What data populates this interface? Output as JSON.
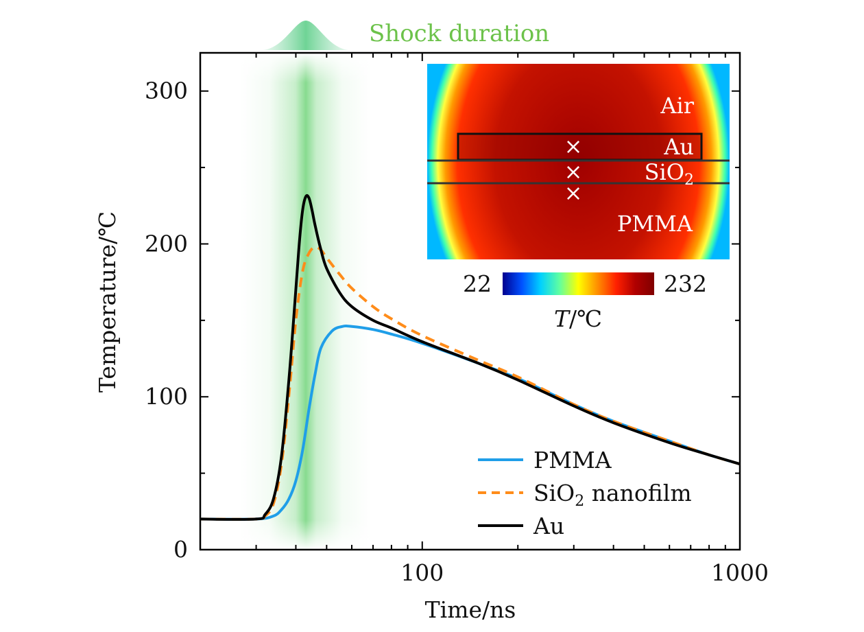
{
  "chart_data": {
    "type": "line",
    "xscale": "log",
    "xlim": [
      20,
      1000
    ],
    "ylim": [
      0,
      325
    ],
    "xlabel": "Time/ns",
    "ylabel": "Temperature/℃",
    "xticks": [
      100,
      1000
    ],
    "xtick_labels": [
      "100",
      "1000"
    ],
    "yticks": [
      0,
      100,
      200,
      300
    ],
    "ytick_labels": [
      "0",
      "100",
      "200",
      "300"
    ],
    "grid": false,
    "legend_position": "bottom-right",
    "series": [
      {
        "name": "PMMA",
        "color": "#1f9ee8",
        "style": "solid",
        "x": [
          20,
          30,
          34,
          36,
          38,
          40,
          42,
          44,
          46,
          48,
          52,
          56,
          60,
          70,
          80,
          100,
          150,
          200,
          300,
          400,
          600,
          800,
          1000
        ],
        "y": [
          20,
          20,
          22,
          26,
          33,
          45,
          65,
          92,
          115,
          132,
          143,
          146,
          146,
          144,
          141,
          135,
          122,
          112,
          95,
          84,
          71,
          62,
          56
        ]
      },
      {
        "name": "SiO₂ nanofilm",
        "name_main": "SiO",
        "name_sub": "2",
        "name_rest": " nanofilm",
        "color": "#ff8c1a",
        "style": "dashed",
        "x": [
          20,
          30,
          32,
          34,
          36,
          38,
          40,
          42,
          44,
          46,
          48,
          50,
          55,
          60,
          70,
          80,
          100,
          150,
          200,
          300,
          400,
          600,
          800,
          1000
        ],
        "y": [
          20,
          20,
          22,
          30,
          55,
          100,
          150,
          182,
          194,
          198,
          196,
          191,
          180,
          171,
          159,
          151,
          140,
          124,
          113,
          95,
          84,
          71,
          62,
          56
        ]
      },
      {
        "name": "Au",
        "color": "#000000",
        "style": "solid",
        "x": [
          20,
          30,
          32,
          34,
          36,
          38,
          40,
          41,
          42,
          43,
          44,
          45,
          46,
          48,
          50,
          55,
          60,
          70,
          80,
          100,
          150,
          200,
          300,
          400,
          600,
          800,
          1000
        ],
        "y": [
          20,
          20,
          23,
          33,
          60,
          110,
          170,
          200,
          222,
          231,
          230,
          222,
          212,
          196,
          184,
          168,
          159,
          150,
          145,
          136,
          122,
          111,
          94,
          83,
          70,
          62,
          56
        ]
      }
    ],
    "annotations": {
      "shock_label": "Shock duration",
      "shock_center_x": 43
    },
    "inset": {
      "region_labels": [
        "Air",
        "Au",
        "SiO",
        "PMMA"
      ],
      "sio2_sub": "2",
      "colorbar": {
        "min_label": "22",
        "max_label": "232",
        "label_T": "T",
        "label_unit": "/℃",
        "colors": [
          "#00008f",
          "#0050ff",
          "#00d0ff",
          "#60ffa0",
          "#ffff00",
          "#ff9000",
          "#ff2000",
          "#b00000",
          "#800000"
        ]
      }
    }
  }
}
